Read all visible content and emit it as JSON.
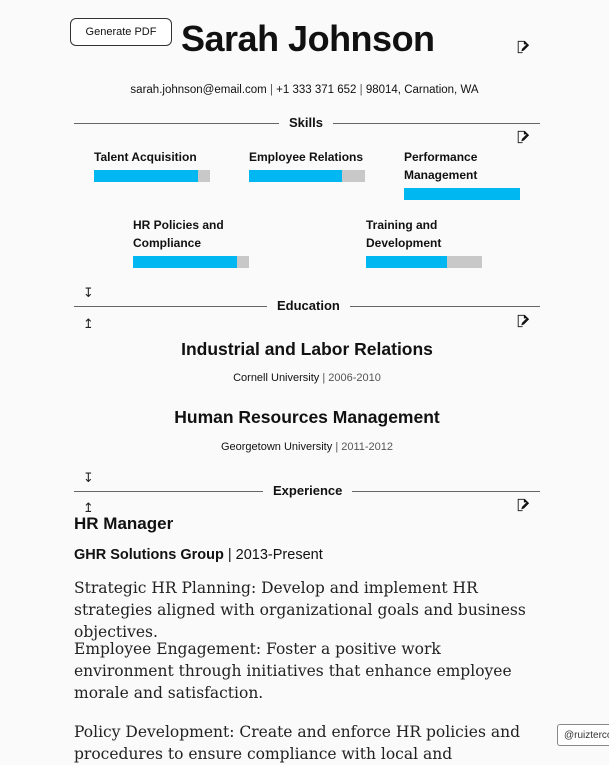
{
  "toolbar": {
    "generate_pdf_label": "Generate PDF"
  },
  "header": {
    "name": "Sarah Johnson",
    "email": "sarah.johnson@email.com",
    "phone": "+1 333 371 652",
    "location": "98014, Carnation, WA",
    "separator": "|"
  },
  "skills": {
    "title": "Skills",
    "accent_color": "#00b7f1",
    "track_color": "#c8c8c8",
    "items": [
      {
        "label": "Talent Acquisition",
        "level": 0.9
      },
      {
        "label": "Employee Relations",
        "level": 0.8
      },
      {
        "label": "Performance Management",
        "level": 1.0
      },
      {
        "label": "HR Policies and Compliance",
        "level": 0.9
      },
      {
        "label": "Training and Development",
        "level": 0.7
      }
    ]
  },
  "education": {
    "title": "Education",
    "items": [
      {
        "degree": "Industrial and Labor Relations",
        "school": "Cornell University",
        "years": "2006-2010"
      },
      {
        "degree": "Human Resources Management",
        "school": "Georgetown University",
        "years": "2011-2012"
      }
    ]
  },
  "experience": {
    "title": "Experience",
    "job": {
      "title": "HR Manager",
      "company": "GHR Solutions Group",
      "years": "2013-Present",
      "descriptions": [
        "Strategic HR Planning: Develop and implement HR strategies aligned with organizational goals and business objectives.",
        "Employee Engagement: Foster a positive work environment through initiatives that enhance employee morale and satisfaction.",
        "Policy Development: Create and enforce HR policies and procedures to ensure compliance with local and"
      ]
    }
  },
  "icons": {
    "edit": "edit-icon",
    "move_down": "↧",
    "move_up": "↥"
  },
  "credit": "@ruizterco"
}
